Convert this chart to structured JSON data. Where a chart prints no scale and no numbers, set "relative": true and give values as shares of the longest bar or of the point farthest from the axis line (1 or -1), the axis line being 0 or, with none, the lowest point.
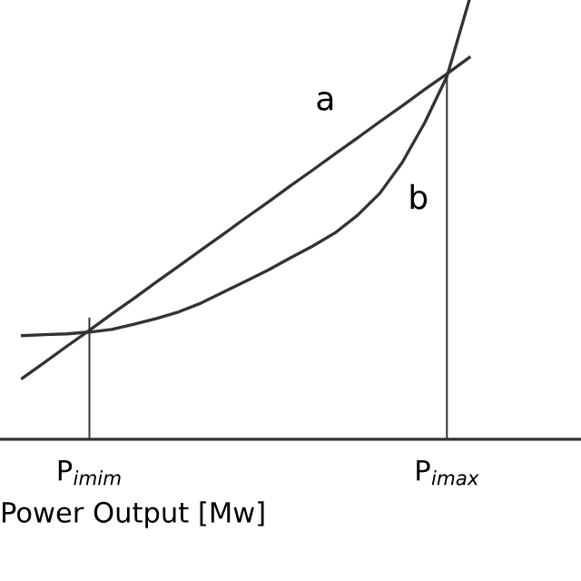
{
  "chart_data": {
    "type": "line",
    "relative": true,
    "xlabel": "Power Output [Mw]",
    "categories": [
      null,
      null,
      null,
      null,
      "P$_{imim}$",
      null,
      null,
      null,
      null,
      null,
      null,
      null,
      null,
      null,
      null,
      null,
      null,
      null,
      null,
      null,
      "P$_{imax}$",
      null,
      null,
      null,
      null,
      null,
      null
    ],
    "series": [
      {
        "color": "#333333",
        "values": [
          null,
          0.139,
          0.175,
          0.212,
          0.248,
          0.285,
          0.321,
          0.358,
          0.394,
          0.431,
          0.467,
          0.504,
          0.54,
          0.577,
          0.613,
          0.65,
          0.686,
          0.723,
          0.759,
          0.796,
          0.832,
          0.869,
          null,
          null,
          null,
          null,
          null
        ]
      },
      {
        "color": "#333333",
        "values": [
          null,
          0.236,
          0.238,
          0.24,
          0.244,
          0.25,
          0.262,
          0.275,
          0.29,
          0.31,
          0.335,
          0.36,
          0.385,
          0.413,
          0.44,
          0.47,
          0.51,
          0.56,
          0.63,
          0.72,
          0.826,
          1.0,
          null,
          null,
          null,
          null,
          null
        ]
      },
      {
        "type": "bar",
        "color": "#333333",
        "values": [
          null,
          null,
          null,
          null,
          0.277,
          null,
          null,
          null,
          null,
          null,
          null,
          null,
          null,
          null,
          null,
          null,
          null,
          null,
          null,
          null,
          0.83,
          null,
          null,
          null,
          null,
          null,
          null
        ]
      }
    ],
    "annotations": [
      "a",
      "b"
    ]
  }
}
